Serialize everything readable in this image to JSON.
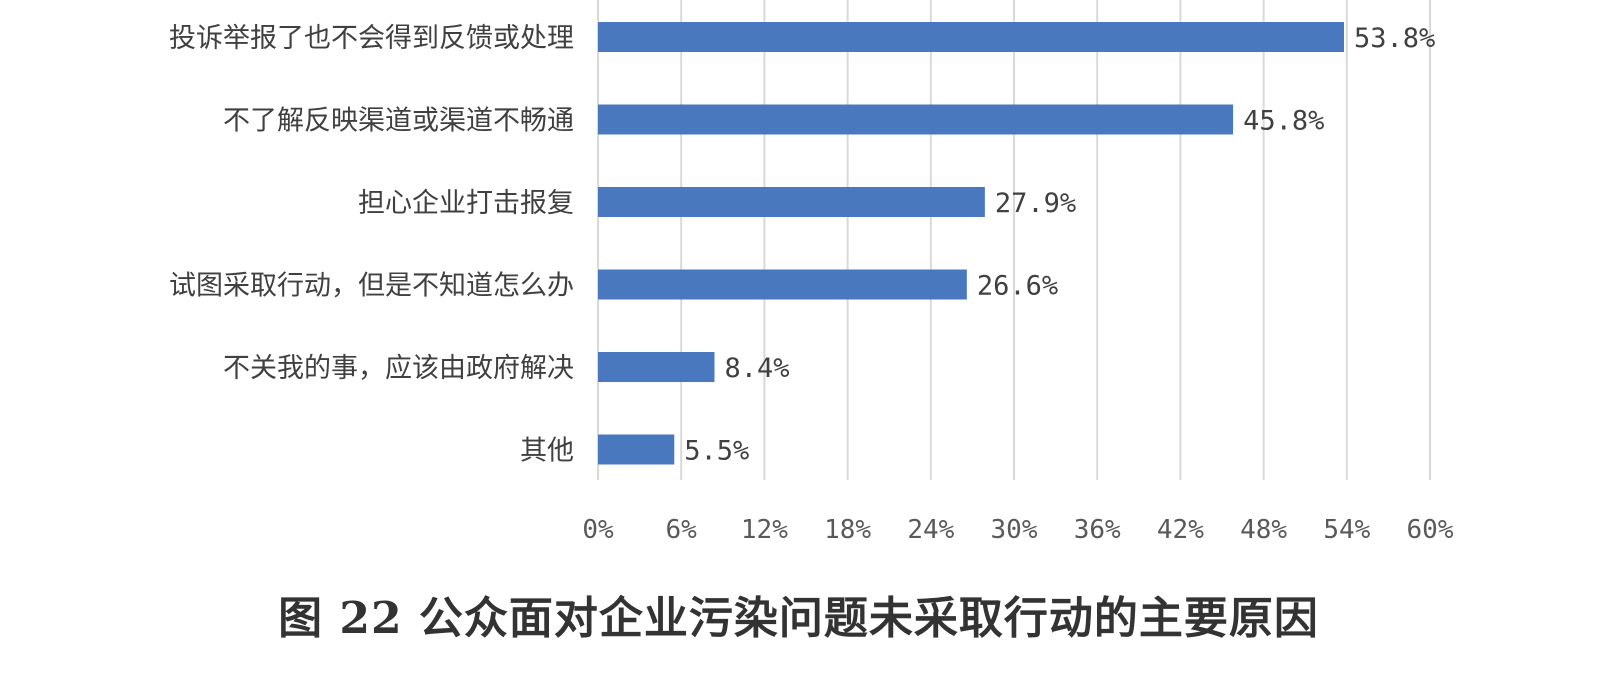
{
  "caption": "图 22 公众面对企业污染问题未采取行动的主要原因",
  "colors": {
    "bar": "#4a78bf",
    "grid": "#d9d9d9",
    "text": "#404040"
  },
  "chart_data": {
    "type": "bar",
    "orientation": "horizontal",
    "categories": [
      "投诉举报了也不会得到反馈或处理",
      "不了解反映渠道或渠道不畅通",
      "担心企业打击报复",
      "试图采取行动，但是不知道怎么办",
      "不关我的事，应该由政府解决",
      "其他"
    ],
    "values": [
      53.8,
      45.8,
      27.9,
      26.6,
      8.4,
      5.5
    ],
    "value_labels": [
      "53.8%",
      "45.8%",
      "27.9%",
      "26.6%",
      "8.4%",
      "5.5%"
    ],
    "x_ticks": [
      "0%",
      "6%",
      "12%",
      "18%",
      "24%",
      "30%",
      "36%",
      "42%",
      "48%",
      "54%",
      "60%"
    ],
    "xlim": [
      0,
      60
    ],
    "grid": true,
    "legend": "none",
    "title": "",
    "xlabel": "",
    "ylabel": ""
  }
}
